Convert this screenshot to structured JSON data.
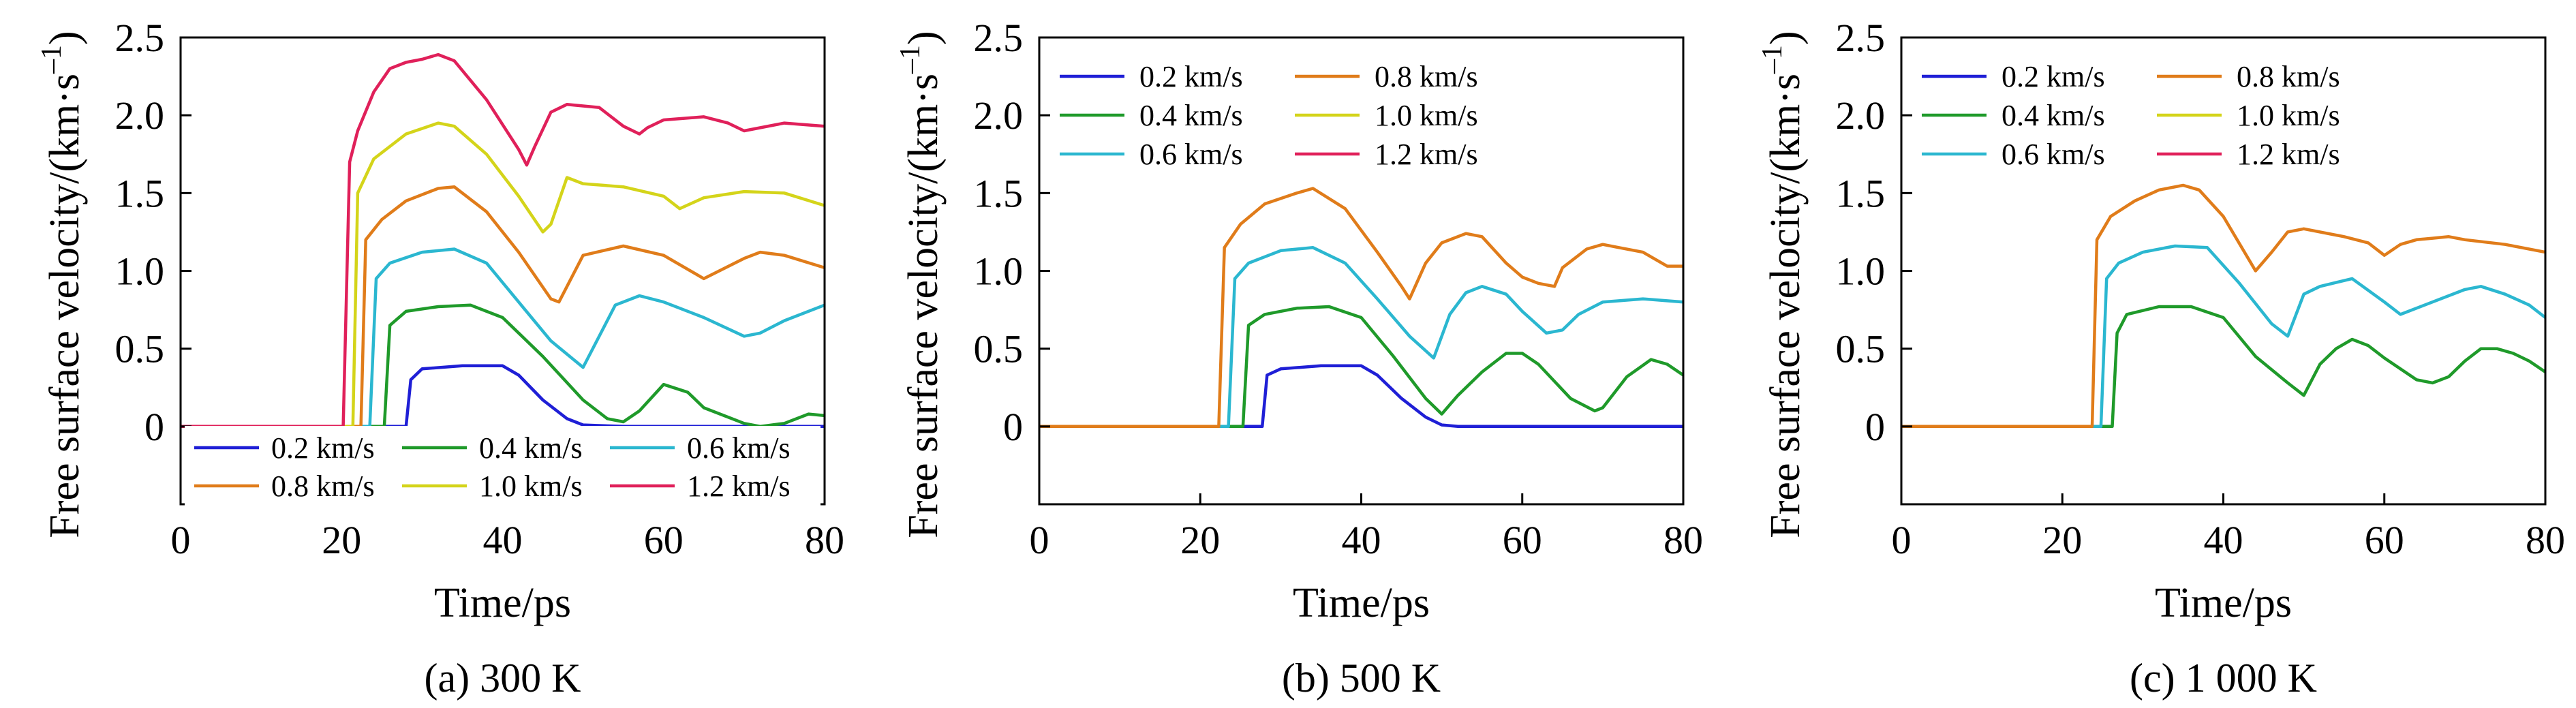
{
  "figure": {
    "panels": [
      {
        "caption": "(a) 300 K",
        "legend": {
          "placement": "bottom",
          "columns": 3
        }
      },
      {
        "caption": "(b) 500 K",
        "legend": {
          "placement": "top-left",
          "columns": 2
        }
      },
      {
        "caption": "(c) 1 000 K",
        "legend": {
          "placement": "top-left",
          "columns": 2
        }
      }
    ]
  },
  "chart_data": [
    {
      "type": "line",
      "title": "",
      "caption": "(a) 300 K",
      "xlabel": "Time/ps",
      "ylabel": "Free surface velocity/(km·s⁻¹)",
      "xlim": [
        0,
        80
      ],
      "ylim": [
        -0.5,
        2.5
      ],
      "xticks": [
        "0",
        "20",
        "40",
        "60",
        "80"
      ],
      "yticks": [
        "0",
        "0.5",
        "1.0",
        "1.5",
        "2.0",
        "2.5"
      ],
      "grid": false,
      "legend_placement": "bottom",
      "series": [
        {
          "name": "0.2 km/s",
          "color": "#1f1fd6",
          "x": [
            0,
            28,
            28.6,
            30,
            35,
            40,
            42,
            45,
            48,
            50,
            55,
            60,
            80
          ],
          "y": [
            0,
            0,
            0.3,
            0.37,
            0.39,
            0.39,
            0.33,
            0.17,
            0.05,
            0.01,
            0,
            0,
            0
          ]
        },
        {
          "name": "0.4 km/s",
          "color": "#1f9a2a",
          "x": [
            0,
            25.3,
            26,
            28,
            32,
            36,
            40,
            45,
            50,
            53,
            55,
            57,
            60,
            63,
            65,
            70,
            72,
            75,
            78,
            80
          ],
          "y": [
            0,
            0,
            0.65,
            0.74,
            0.77,
            0.78,
            0.7,
            0.45,
            0.17,
            0.05,
            0.03,
            0.1,
            0.27,
            0.22,
            0.12,
            0.02,
            0,
            0.02,
            0.08,
            0.07
          ]
        },
        {
          "name": "0.6 km/s",
          "color": "#2bb7d0",
          "x": [
            0,
            23.5,
            24.3,
            26,
            30,
            34,
            38,
            42,
            46,
            50,
            52,
            54,
            57,
            60,
            65,
            70,
            72,
            75,
            80
          ],
          "y": [
            0,
            0,
            0.95,
            1.05,
            1.12,
            1.14,
            1.05,
            0.8,
            0.55,
            0.38,
            0.58,
            0.78,
            0.84,
            0.8,
            0.7,
            0.58,
            0.6,
            0.68,
            0.78
          ]
        },
        {
          "name": "0.8 km/s",
          "color": "#e07c1a",
          "x": [
            0,
            22.4,
            23,
            25,
            28,
            32,
            34,
            38,
            42,
            46,
            47,
            50,
            55,
            60,
            65,
            70,
            72,
            75,
            80
          ],
          "y": [
            0,
            0,
            1.2,
            1.33,
            1.45,
            1.53,
            1.54,
            1.38,
            1.12,
            0.82,
            0.8,
            1.1,
            1.16,
            1.1,
            0.95,
            1.08,
            1.12,
            1.1,
            1.02
          ]
        },
        {
          "name": "1.0 km/s",
          "color": "#d4d41a",
          "x": [
            0,
            21.4,
            22,
            24,
            28,
            32,
            34,
            38,
            42,
            45,
            46,
            48,
            50,
            55,
            60,
            62,
            65,
            70,
            75,
            80
          ],
          "y": [
            0,
            0,
            1.5,
            1.72,
            1.88,
            1.95,
            1.93,
            1.75,
            1.48,
            1.25,
            1.3,
            1.6,
            1.56,
            1.54,
            1.48,
            1.4,
            1.47,
            1.51,
            1.5,
            1.42
          ]
        },
        {
          "name": "1.2 km/s",
          "color": "#e0205a",
          "x": [
            0,
            20.2,
            21,
            22,
            24,
            26,
            28,
            30,
            32,
            34,
            38,
            42,
            43,
            44,
            46,
            48,
            50,
            52,
            55,
            57,
            58,
            60,
            65,
            68,
            70,
            75,
            80
          ],
          "y": [
            0,
            0,
            1.7,
            1.9,
            2.15,
            2.3,
            2.34,
            2.36,
            2.39,
            2.35,
            2.1,
            1.78,
            1.68,
            1.8,
            2.02,
            2.07,
            2.06,
            2.05,
            1.93,
            1.88,
            1.92,
            1.97,
            1.99,
            1.95,
            1.9,
            1.95,
            1.93
          ]
        }
      ]
    },
    {
      "type": "line",
      "title": "",
      "caption": "(b) 500 K",
      "xlabel": "Time/ps",
      "ylabel": "Free surface velocity/(km·s⁻¹)",
      "xlim": [
        0,
        80
      ],
      "ylim": [
        -0.5,
        2.5
      ],
      "xticks": [
        "0",
        "20",
        "40",
        "60",
        "80"
      ],
      "yticks": [
        "0",
        "0.5",
        "1.0",
        "1.5",
        "2.0",
        "2.5"
      ],
      "grid": false,
      "legend_placement": "top-left",
      "series": [
        {
          "name": "0.2 km/s",
          "color": "#1f1fd6",
          "x": [
            0,
            27.7,
            28.3,
            30,
            35,
            40,
            42,
            45,
            48,
            50,
            52,
            80
          ],
          "y": [
            0,
            0,
            0.33,
            0.37,
            0.39,
            0.39,
            0.33,
            0.18,
            0.06,
            0.01,
            0,
            0
          ]
        },
        {
          "name": "0.4 km/s",
          "color": "#1f9a2a",
          "x": [
            0,
            25.3,
            26,
            28,
            32,
            36,
            40,
            44,
            48,
            50,
            52,
            55,
            58,
            60,
            62,
            66,
            69,
            70,
            73,
            76,
            78,
            80
          ],
          "y": [
            0,
            0,
            0.65,
            0.72,
            0.76,
            0.77,
            0.7,
            0.45,
            0.18,
            0.08,
            0.2,
            0.35,
            0.47,
            0.47,
            0.4,
            0.18,
            0.1,
            0.12,
            0.32,
            0.43,
            0.4,
            0.33
          ]
        },
        {
          "name": "0.6 km/s",
          "color": "#2bb7d0",
          "x": [
            0,
            23.5,
            24.3,
            26,
            30,
            34,
            38,
            42,
            46,
            49,
            51,
            53,
            55,
            58,
            60,
            63,
            65,
            67,
            70,
            75,
            80
          ],
          "y": [
            0,
            0,
            0.95,
            1.05,
            1.13,
            1.15,
            1.05,
            0.82,
            0.58,
            0.44,
            0.72,
            0.86,
            0.9,
            0.85,
            0.74,
            0.6,
            0.62,
            0.72,
            0.8,
            0.82,
            0.8
          ]
        },
        {
          "name": "0.8 km/s",
          "color": "#e07c1a",
          "x": [
            0,
            22.3,
            23,
            25,
            28,
            32,
            34,
            38,
            42,
            45,
            46,
            48,
            50,
            53,
            55,
            58,
            60,
            62,
            64,
            65,
            68,
            70,
            72,
            75,
            78,
            80
          ],
          "y": [
            0,
            0,
            1.15,
            1.3,
            1.43,
            1.5,
            1.53,
            1.4,
            1.12,
            0.9,
            0.82,
            1.05,
            1.18,
            1.24,
            1.22,
            1.05,
            0.96,
            0.92,
            0.9,
            1.02,
            1.14,
            1.17,
            1.15,
            1.12,
            1.03,
            1.03
          ]
        }
      ]
    },
    {
      "type": "line",
      "title": "",
      "caption": "(c) 1 000 K",
      "xlabel": "Time/ps",
      "ylabel": "Free surface velocity/(km·s⁻¹)",
      "xlim": [
        0,
        80
      ],
      "ylim": [
        -0.5,
        2.5
      ],
      "xticks": [
        "0",
        "20",
        "40",
        "60",
        "80"
      ],
      "yticks": [
        "0",
        "0.5",
        "1.0",
        "1.5",
        "2.0",
        "2.5"
      ],
      "grid": false,
      "legend_placement": "top-left",
      "series": [
        {
          "name": "0.4 km/s",
          "color": "#1f9a2a",
          "x": [
            0,
            26.2,
            26.8,
            28,
            32,
            36,
            40,
            44,
            48,
            50,
            52,
            54,
            56,
            58,
            60,
            64,
            66,
            68,
            70,
            72,
            74,
            76,
            78,
            80
          ],
          "y": [
            0,
            0,
            0.6,
            0.72,
            0.77,
            0.77,
            0.7,
            0.45,
            0.28,
            0.2,
            0.4,
            0.5,
            0.56,
            0.52,
            0.44,
            0.3,
            0.28,
            0.32,
            0.42,
            0.5,
            0.5,
            0.47,
            0.42,
            0.35
          ]
        },
        {
          "name": "0.6 km/s",
          "color": "#2bb7d0",
          "x": [
            0,
            24.8,
            25.5,
            27,
            30,
            34,
            38,
            42,
            46,
            48,
            50,
            52,
            56,
            60,
            62,
            65,
            70,
            72,
            75,
            78,
            80
          ],
          "y": [
            0,
            0,
            0.95,
            1.05,
            1.12,
            1.16,
            1.15,
            0.92,
            0.66,
            0.58,
            0.85,
            0.9,
            0.95,
            0.8,
            0.72,
            0.78,
            0.88,
            0.9,
            0.85,
            0.78,
            0.7
          ]
        },
        {
          "name": "0.8 km/s",
          "color": "#e07c1a",
          "x": [
            0,
            23.7,
            24.3,
            26,
            29,
            32,
            35,
            37,
            40,
            44,
            46,
            48,
            50,
            55,
            58,
            60,
            62,
            64,
            66,
            68,
            70,
            75,
            80
          ],
          "y": [
            0,
            0,
            1.2,
            1.35,
            1.45,
            1.52,
            1.55,
            1.52,
            1.35,
            1.0,
            1.12,
            1.25,
            1.27,
            1.22,
            1.18,
            1.1,
            1.17,
            1.2,
            1.21,
            1.22,
            1.2,
            1.17,
            1.12
          ]
        }
      ]
    }
  ],
  "legend_entries": [
    {
      "name": "0.2 km/s",
      "color": "#1f1fd6"
    },
    {
      "name": "0.4 km/s",
      "color": "#1f9a2a"
    },
    {
      "name": "0.6 km/s",
      "color": "#2bb7d0"
    },
    {
      "name": "0.8 km/s",
      "color": "#e07c1a"
    },
    {
      "name": "1.0 km/s",
      "color": "#d4d41a"
    },
    {
      "name": "1.2 km/s",
      "color": "#e0205a"
    }
  ]
}
